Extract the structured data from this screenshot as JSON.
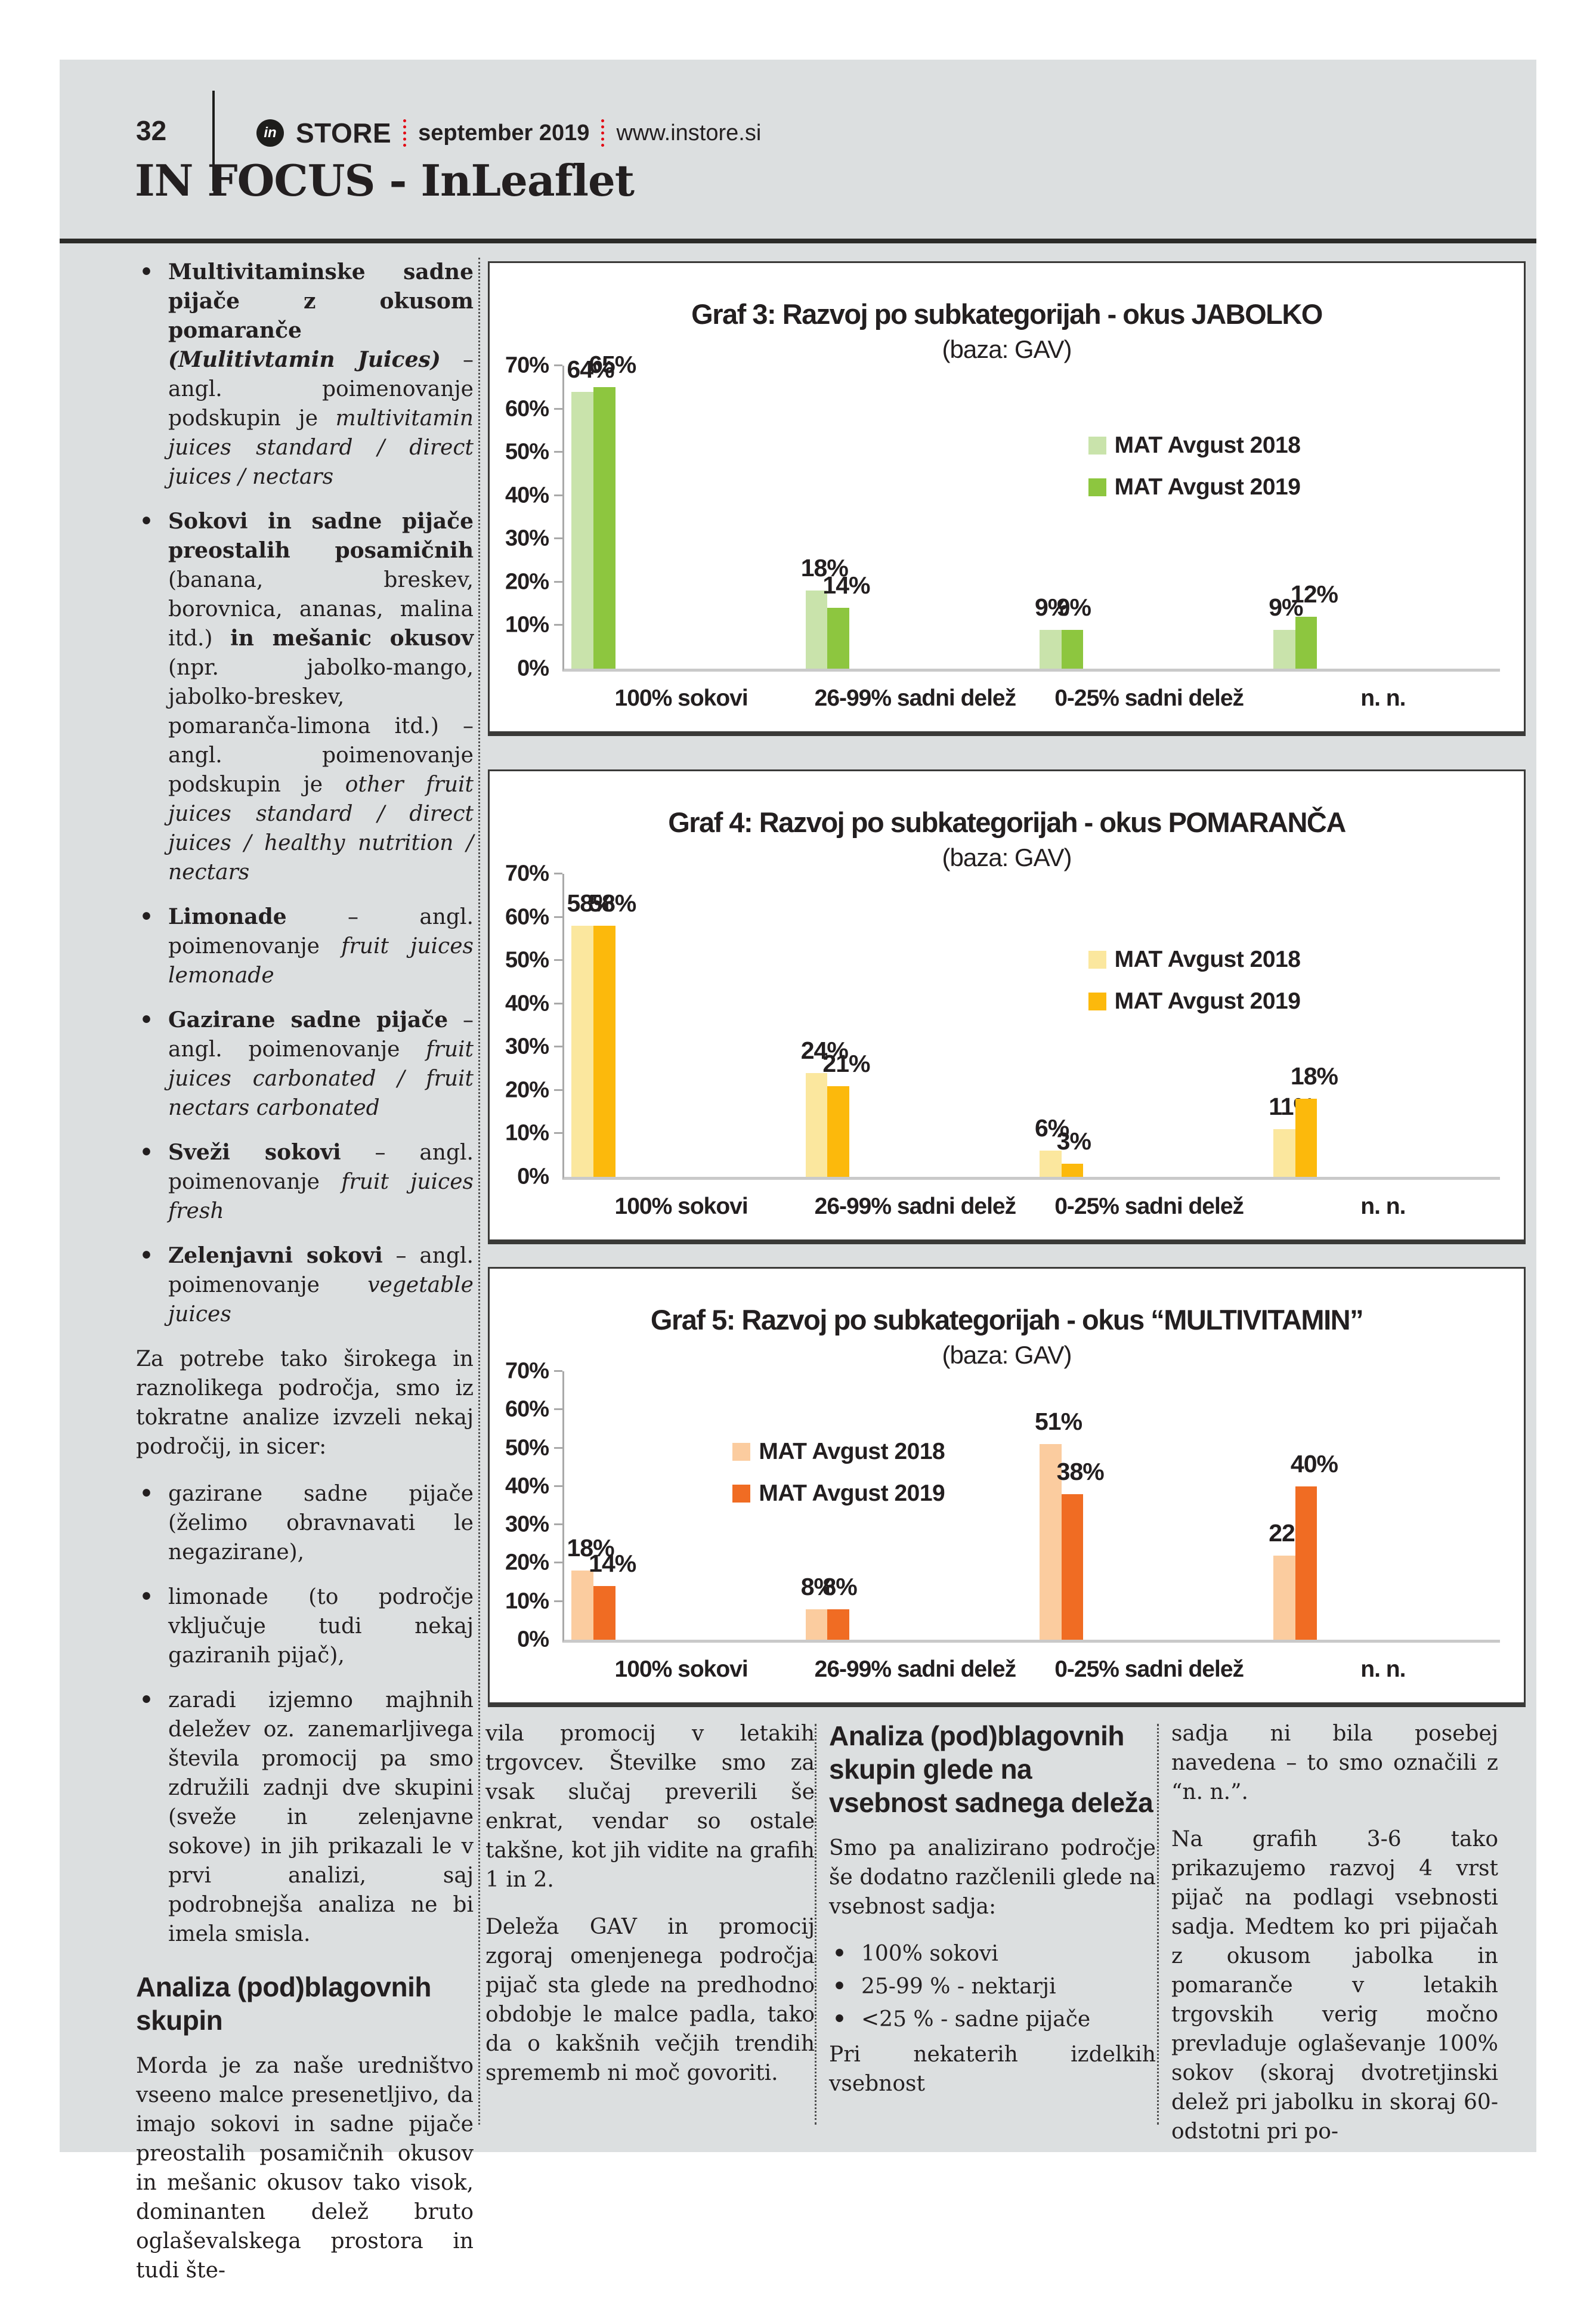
{
  "header": {
    "page_number": "32",
    "brand_prefix": "in",
    "brand": "STORE",
    "date": "september 2019",
    "site": "www.instore.si",
    "section_title": "IN FOCUS - InLeaflet"
  },
  "left_column": {
    "bullets": [
      {
        "segments": [
          {
            "t": "Multivitaminske sadne pijače z okusom pomaranče ",
            "b": true
          },
          {
            "t": "(Mulitivtamin Juices)",
            "b": true,
            "i": true
          },
          {
            "t": " – angl. poimenovanje podskupin je "
          },
          {
            "t": "multivitamin juices standard / direct juices / nectars",
            "i": true
          }
        ]
      },
      {
        "segments": [
          {
            "t": "Sokovi in sadne pijače preostalih posamičnih ",
            "b": true
          },
          {
            "t": "(banana, breskev, borovnica, ananas, malina itd.) "
          },
          {
            "t": "in mešanic okusov ",
            "b": true
          },
          {
            "t": "(npr. jabolko-mango, jabolko-breskev, pomaranča-limona itd.) – angl. poimenovanje podskupin je "
          },
          {
            "t": "other fruit juices standard / direct juices / healthy nutrition / nectars",
            "i": true
          }
        ]
      },
      {
        "segments": [
          {
            "t": "Limonade",
            "b": true
          },
          {
            "t": " – angl. poimenovanje "
          },
          {
            "t": "fruit juices lemonade",
            "i": true
          }
        ]
      },
      {
        "segments": [
          {
            "t": "Gazirane sadne pijače",
            "b": true
          },
          {
            "t": " – angl. poimenovanje "
          },
          {
            "t": "fruit juices carbonated / fruit nectars carbonated",
            "i": true
          }
        ]
      },
      {
        "segments": [
          {
            "t": "Sveži sokovi",
            "b": true
          },
          {
            "t": " – angl. poimenovanje "
          },
          {
            "t": "fruit juices fresh",
            "i": true
          }
        ]
      },
      {
        "segments": [
          {
            "t": "Zelenjavni sokovi",
            "b": true
          },
          {
            "t": " – angl. poimenovanje "
          },
          {
            "t": "vegetable juices",
            "i": true
          }
        ]
      }
    ],
    "paragraph": "Za potrebe tako širokega in raznolikega področja, smo iz tokratne analize izvzeli nekaj področij, in sicer:",
    "exclusions": [
      "gazirane sadne pijače (želimo obravnavati le negazirane),",
      "limonade (to področje vključuje tudi nekaj gaziranih pijač),",
      "zaradi izjemno majhnih deležev oz. zanemarljivega števila promocij pa smo združili zadnji dve skupini (sveže in zelenjavne sokove) in jih prikazali le v prvi analizi, saj podrobnejša analiza ne bi imela smisla."
    ],
    "heading": "Analiza (pod)blagovnih skupin",
    "paragraph2": "Morda je za naše uredništvo vseeno malce presenetljivo, da imajo sokovi in sadne pijače preostalih posamičnih okusov in mešanic okusov tako visok, dominanten delež bruto oglaševalskega prostora in tudi šte-"
  },
  "bottom_columns": {
    "col1": {
      "paragraphs": [
        "vila promocij v letakih trgovcev. Številke smo za vsak slučaj preverili še enkrat, vendar so ostale takšne, kot jih vidite na grafih 1 in 2.",
        "Deleža GAV in promocij zgoraj omenjenega področja pijač sta glede na predhodno obdobje le malce padla, tako da o kakšnih večjih trendih sprememb ni moč govoriti."
      ]
    },
    "col2": {
      "heading": "Analiza (pod)blagovnih skupin glede na vsebnost sadnega deleža",
      "intro": "Smo pa analizirano področje še dodatno razčlenili glede na vsebnost sadja:",
      "bullets": [
        "100% sokovi",
        "25-99 % - nektarji",
        "<25 % - sadne pijače"
      ],
      "outro": "Pri nekaterih izdelkih vsebnost"
    },
    "col3": {
      "paragraphs": [
        "sadja ni bila posebej navedena – to smo označili z “n. n.”.",
        "Na grafih 3-6 tako prikazujemo razvoj 4 vrst pijač na podlagi vsebnosti sadja. Medtem ko pri pijačah z okusom jabolka in pomaranče v letakih trgovskih verig močno prevladuje oglaševanje 100% sokov (skoraj dvotretjinski delež pri jabolku in skoraj 60-odstotni pri po-"
      ]
    }
  },
  "chart_data": [
    {
      "type": "bar",
      "title": "Graf 3: Razvoj po subkategorijah - okus JABOLKO",
      "subtitle": "(baza: GAV)",
      "categories": [
        "100% sokovi",
        "26-99% sadni delež",
        "0-25% sadni delež",
        "n. n."
      ],
      "series": [
        {
          "name": "MAT Avgust 2018",
          "color": "#c9e3ab",
          "values": [
            64,
            18,
            9,
            9
          ]
        },
        {
          "name": "MAT Avgust 2019",
          "color": "#8dc63f",
          "values": [
            65,
            14,
            9,
            12
          ]
        }
      ],
      "ylim": [
        0,
        70
      ],
      "yticks": [
        "0%",
        "10%",
        "20%",
        "30%",
        "40%",
        "50%",
        "60%",
        "70%"
      ],
      "grid": false,
      "value_suffix": "%",
      "legend_pos": {
        "x": "56%",
        "y": "22%"
      }
    },
    {
      "type": "bar",
      "title": "Graf 4: Razvoj po subkategorijah - okus POMARANČA",
      "subtitle": "(baza: GAV)",
      "categories": [
        "100% sokovi",
        "26-99% sadni delež",
        "0-25% sadni delež",
        "n. n."
      ],
      "series": [
        {
          "name": "MAT Avgust 2018",
          "color": "#fbe79e",
          "values": [
            58,
            24,
            6,
            11
          ]
        },
        {
          "name": "MAT Avgust 2019",
          "color": "#fcb90c",
          "values": [
            58,
            21,
            3,
            18
          ]
        }
      ],
      "ylim": [
        0,
        70
      ],
      "yticks": [
        "0%",
        "10%",
        "20%",
        "30%",
        "40%",
        "50%",
        "60%",
        "70%"
      ],
      "grid": false,
      "value_suffix": "%",
      "legend_pos": {
        "x": "56%",
        "y": "24%"
      }
    },
    {
      "type": "bar",
      "title": "Graf 5: Razvoj po subkategorijah - okus “MULTIVITAMIN”",
      "subtitle": "(baza: GAV)",
      "categories": [
        "100% sokovi",
        "26-99% sadni delež",
        "0-25% sadni delež",
        "n. n."
      ],
      "series": [
        {
          "name": "MAT Avgust 2018",
          "color": "#fbcc9f",
          "values": [
            18,
            8,
            51,
            22
          ]
        },
        {
          "name": "MAT Avgust 2019",
          "color": "#f06c23",
          "values": [
            14,
            8,
            38,
            40
          ]
        }
      ],
      "ylim": [
        0,
        70
      ],
      "yticks": [
        "0%",
        "10%",
        "20%",
        "30%",
        "40%",
        "50%",
        "60%",
        "70%"
      ],
      "grid": false,
      "value_suffix": "%",
      "legend_pos": {
        "x": "18%",
        "y": "25%"
      }
    }
  ]
}
